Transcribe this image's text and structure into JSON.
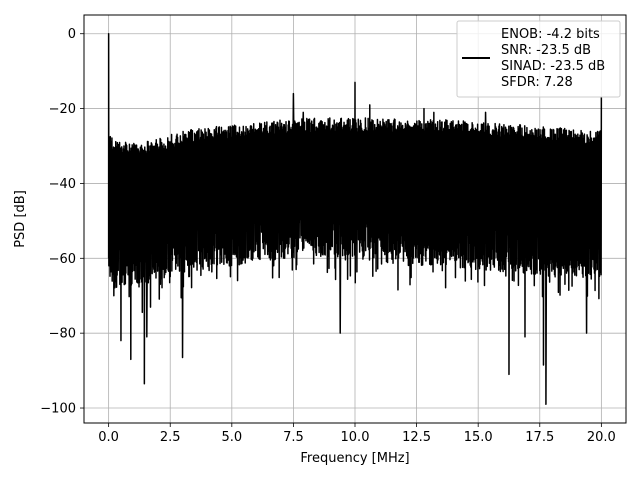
{
  "chart_data": {
    "type": "line",
    "xlabel": "Frequency [MHz]",
    "ylabel": "PSD [dB]",
    "xlim": [
      -1.0,
      21.0
    ],
    "ylim": [
      -104,
      5
    ],
    "xticks": [
      0.0,
      2.5,
      5.0,
      7.5,
      10.0,
      12.5,
      15.0,
      17.5,
      20.0
    ],
    "xtick_labels": [
      "0.0",
      "2.5",
      "5.0",
      "7.5",
      "10.0",
      "12.5",
      "15.0",
      "17.5",
      "20.0"
    ],
    "yticks": [
      0,
      -20,
      -40,
      -60,
      -80,
      -100
    ],
    "ytick_labels": [
      "0",
      "−20",
      "−40",
      "−60",
      "−80",
      "−100"
    ],
    "grid": true,
    "legend": {
      "placement": "top-right",
      "entries": [
        "ENOB: -4.2 bits",
        "SNR: -23.5 dB",
        "SINAD: -23.5 dB",
        "SFDR: 7.28"
      ]
    },
    "series_color": "#000000",
    "series": [
      {
        "envelope": {
          "x": [
            0.0,
            0.1,
            0.5,
            1.0,
            2.0,
            2.5,
            3.0,
            4.0,
            5.0,
            6.0,
            7.0,
            8.0,
            9.0,
            10.0,
            11.0,
            12.0,
            13.0,
            14.0,
            15.0,
            16.0,
            17.0,
            18.0,
            19.0,
            20.0
          ],
          "upper": [
            -26,
            -27,
            -29,
            -29,
            -28,
            -27,
            -26,
            -25,
            -24.5,
            -24,
            -23,
            -22.5,
            -22.5,
            -22.5,
            -22.5,
            -23,
            -23,
            -23,
            -23.5,
            -24,
            -24.5,
            -25,
            -25.5,
            -26
          ],
          "lower": [
            -66,
            -68,
            -68,
            -67,
            -66,
            -65,
            -64,
            -63,
            -62,
            -61,
            -60,
            -60,
            -60,
            -61,
            -61,
            -62,
            -62,
            -63,
            -63,
            -64,
            -64,
            -65,
            -65,
            -66
          ]
        },
        "spikes": [
          {
            "x": 0.0,
            "y": 0
          },
          {
            "x": 7.5,
            "y": -16
          },
          {
            "x": 10.0,
            "y": -13
          },
          {
            "x": 10.6,
            "y": -19
          },
          {
            "x": 7.9,
            "y": -21
          },
          {
            "x": 12.8,
            "y": -20
          },
          {
            "x": 13.2,
            "y": -21
          },
          {
            "x": 15.3,
            "y": -21
          },
          {
            "x": 20.0,
            "y": -17
          }
        ],
        "dips": [
          {
            "x": 0.5,
            "y": -82
          },
          {
            "x": 0.9,
            "y": -87
          },
          {
            "x": 1.45,
            "y": -93.5
          },
          {
            "x": 1.55,
            "y": -81
          },
          {
            "x": 3.0,
            "y": -86.5
          },
          {
            "x": 9.4,
            "y": -80
          },
          {
            "x": 16.25,
            "y": -91
          },
          {
            "x": 16.9,
            "y": -81
          },
          {
            "x": 17.65,
            "y": -88.5
          },
          {
            "x": 17.75,
            "y": -99
          },
          {
            "x": 19.4,
            "y": -80
          }
        ]
      }
    ]
  }
}
